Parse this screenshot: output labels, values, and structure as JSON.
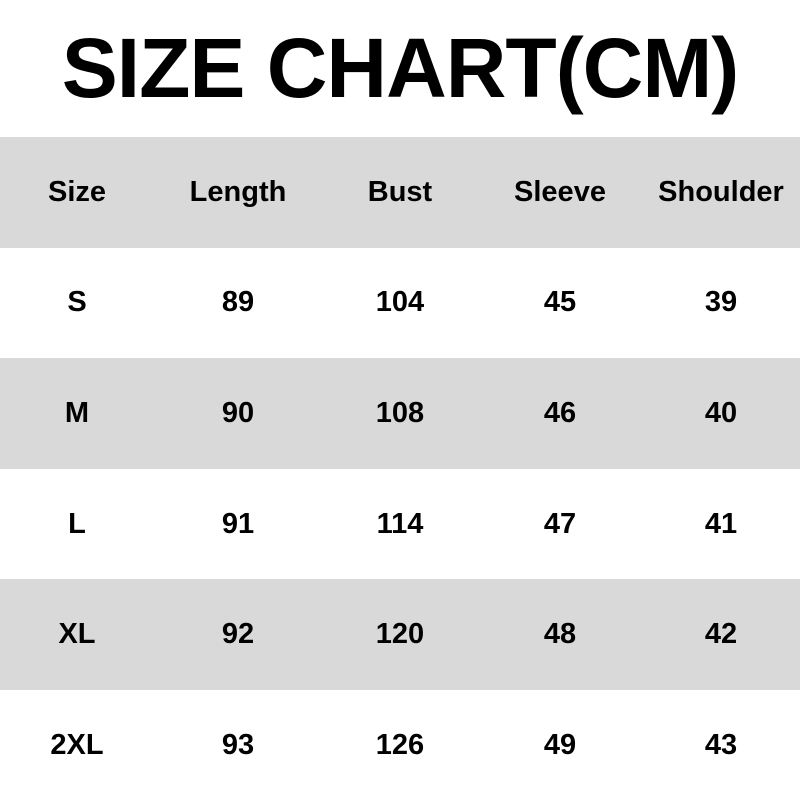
{
  "title": "SIZE CHART(CM)",
  "colors": {
    "stripe": "#d9d9d9",
    "background": "#ffffff",
    "text": "#000000"
  },
  "headers": [
    "Size",
    "Length",
    "Bust",
    "Sleeve",
    "Shoulder"
  ],
  "rows": [
    [
      "S",
      "89",
      "104",
      "45",
      "39"
    ],
    [
      "M",
      "90",
      "108",
      "46",
      "40"
    ],
    [
      "L",
      "91",
      "114",
      "47",
      "41"
    ],
    [
      "XL",
      "92",
      "120",
      "48",
      "42"
    ],
    [
      "2XL",
      "93",
      "126",
      "49",
      "43"
    ]
  ]
}
